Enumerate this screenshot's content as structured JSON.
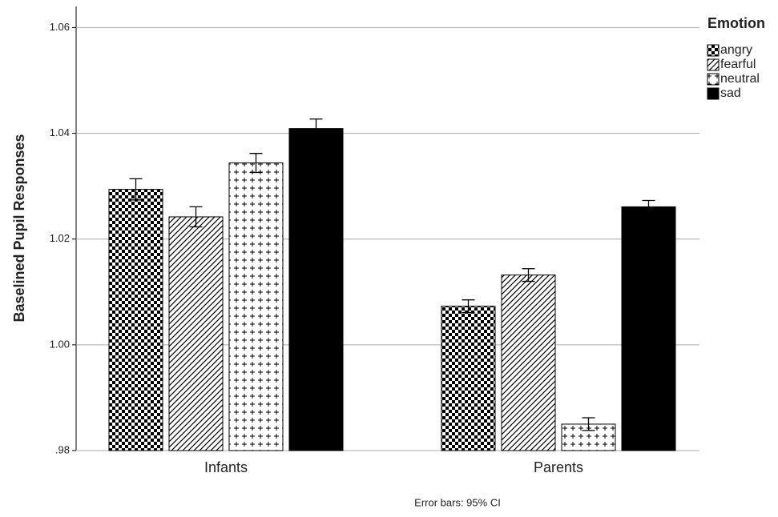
{
  "chart_data": {
    "type": "bar",
    "ylabel": "Baselined Pupil Responses",
    "legend_title": "Emotion",
    "note": "Error bars: 95% CI",
    "categories": [
      "Infants",
      "Parents"
    ],
    "series": [
      {
        "name": "angry",
        "color": "#000000",
        "pattern": "checker",
        "values": [
          1.0294,
          1.0073
        ],
        "errors": [
          0.002,
          0.0012
        ]
      },
      {
        "name": "fearful",
        "color": "#000000",
        "pattern": "diagonal",
        "values": [
          1.0242,
          1.0132
        ],
        "errors": [
          0.0019,
          0.0012
        ]
      },
      {
        "name": "neutral",
        "color": "#000000",
        "pattern": "plus",
        "values": [
          1.0344,
          0.985
        ],
        "errors": [
          0.0018,
          0.0012
        ]
      },
      {
        "name": "sad",
        "color": "#000000",
        "pattern": "solid",
        "values": [
          1.0409,
          1.0261
        ],
        "errors": [
          0.0018,
          0.0012
        ]
      }
    ],
    "ylim": [
      0.98,
      1.064
    ],
    "yticks": [
      {
        "value": 0.98,
        "label": ".98"
      },
      {
        "value": 1,
        "label": "1.00"
      },
      1.02,
      1.04,
      1.06
    ],
    "grid": true,
    "legend": "right"
  }
}
